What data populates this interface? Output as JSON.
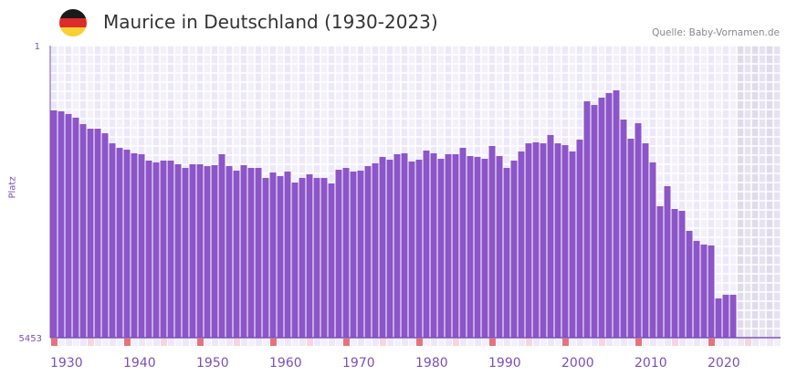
{
  "header": {
    "title": "Maurice in Deutschland (1930-2023)",
    "source": "Quelle: Baby-Vornamen.de",
    "flag_icon": "germany-flag-icon"
  },
  "colors": {
    "bar": "#8c55c8",
    "axis": "#7b4fb8",
    "decade_marker": "#e8727a",
    "half_decade_marker": "#f5d5de",
    "future": "#e2ddec"
  },
  "chart_data": {
    "type": "bar",
    "title": "Maurice in Deutschland (1930-2023)",
    "xlabel": "",
    "ylabel": "Platz",
    "y_axis": {
      "top_label": "1",
      "bottom_label": "5453",
      "inverted": true,
      "range": [
        1,
        5453
      ]
    },
    "x_range": [
      1930,
      2029
    ],
    "x_ticks": [
      "1930",
      "1940",
      "1950",
      "1960",
      "1970",
      "1980",
      "1990",
      "2000",
      "2010",
      "2020"
    ],
    "years_start": 1930,
    "values": [
      269,
      277,
      300,
      333,
      395,
      442,
      442,
      492,
      611,
      669,
      693,
      742,
      755,
      846,
      873,
      846,
      846,
      901,
      957,
      901,
      901,
      929,
      915,
      755,
      929,
      1000,
      915,
      957,
      957,
      1120,
      1030,
      1090,
      1015,
      1199,
      1120,
      1059,
      1120,
      1120,
      1215,
      986,
      957,
      1015,
      1000,
      929,
      887,
      793,
      833,
      755,
      742,
      860,
      833,
      705,
      742,
      820,
      755,
      755,
      669,
      780,
      793,
      820,
      645,
      780,
      957,
      846,
      717,
      611,
      599,
      611,
      512,
      611,
      634,
      717,
      566,
      199,
      226,
      174,
      145,
      129,
      350,
      555,
      386,
      611,
      873,
      1650,
      1264,
      1707,
      1745,
      2195,
      2439,
      2531,
      2554,
      4086,
      3969,
      3969
    ],
    "grid": true,
    "legend": "none"
  }
}
